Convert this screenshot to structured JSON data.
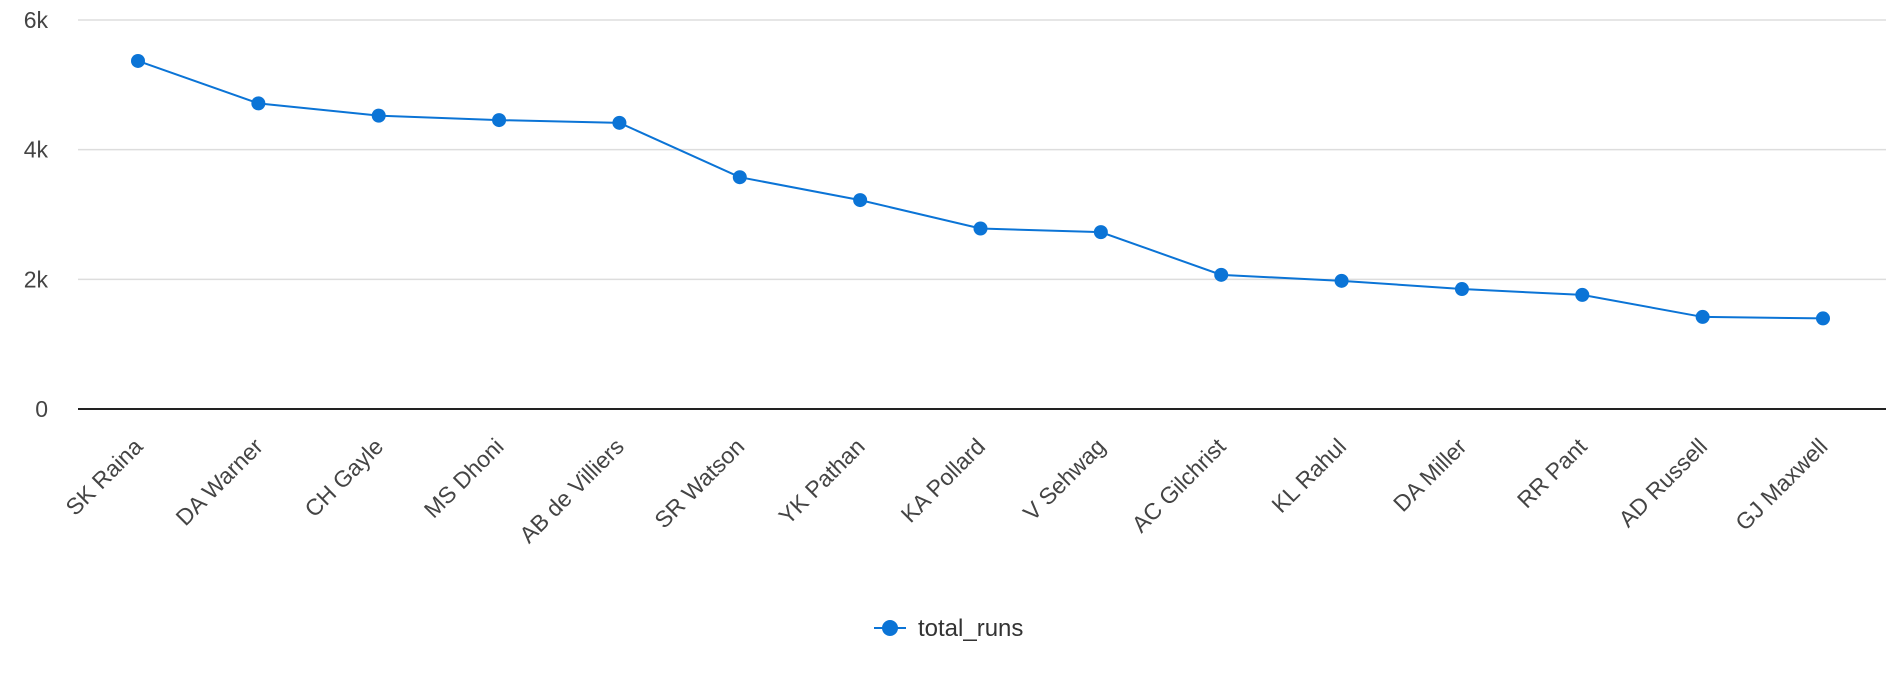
{
  "chart_data": {
    "type": "line",
    "title": "",
    "xlabel": "",
    "ylabel": "",
    "categories": [
      "SK Raina",
      "DA Warner",
      "CH Gayle",
      "MS Dhoni",
      "AB de Villiers",
      "SR Watson",
      "YK Pathan",
      "KA Pollard",
      "V Sehwag",
      "AC Gilchrist",
      "KL Rahul",
      "DA Miller",
      "RR Pant",
      "AD Russell",
      "GJ Maxwell"
    ],
    "series": [
      {
        "name": "total_runs",
        "color": "#0b74d6",
        "values": [
          5368,
          4714,
          4525,
          4456,
          4414,
          3575,
          3222,
          2784,
          2728,
          2069,
          1977,
          1850,
          1760,
          1420,
          1397
        ]
      }
    ],
    "ylim": [
      0,
      6000
    ],
    "yticks": [
      0,
      2000,
      4000,
      6000
    ],
    "ytick_labels": [
      "0",
      "2k",
      "4k",
      "6k"
    ],
    "grid": true,
    "legend": "bottom-center"
  }
}
